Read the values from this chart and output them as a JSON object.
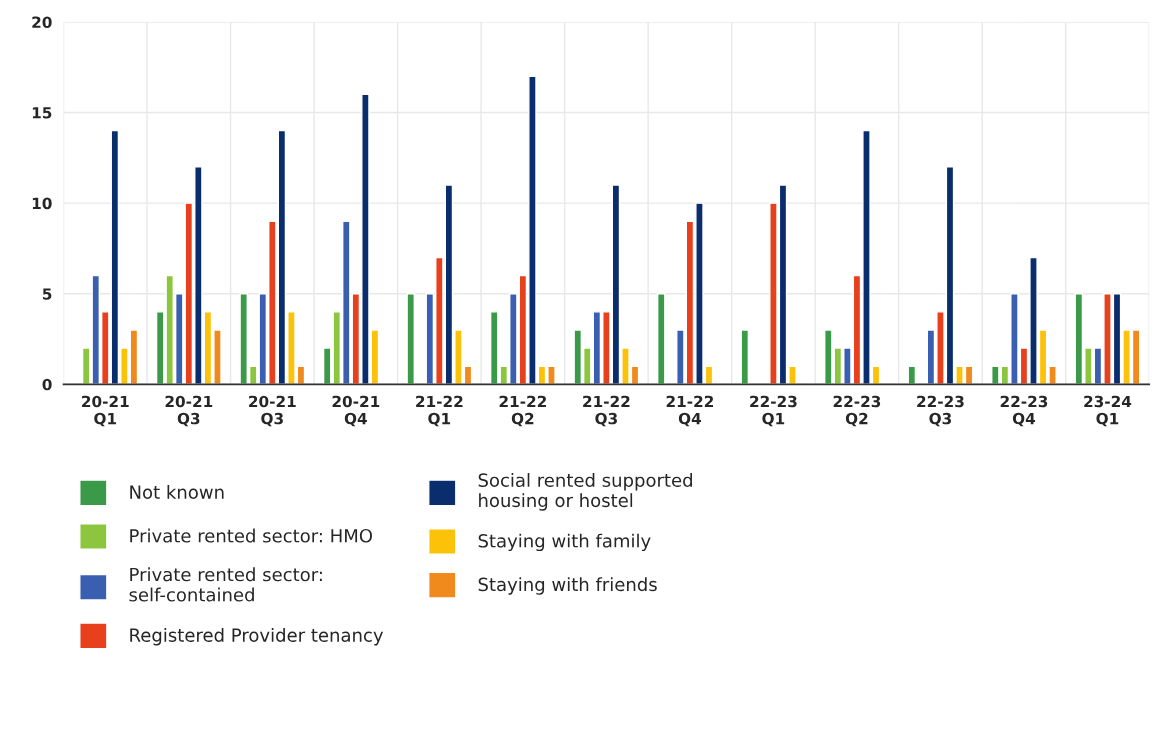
{
  "chart_data": {
    "type": "bar",
    "categories": [
      "20-21\nQ1",
      "20-21\nQ3",
      "20-21\nQ3",
      "20-21\nQ4",
      "21-22\nQ1",
      "21-22\nQ2",
      "21-22\nQ3",
      "21-22\nQ4",
      "22-23\nQ1",
      "22-23\nQ2",
      "22-23\nQ3",
      "22-23\nQ4",
      "23-24\nQ1"
    ],
    "series": [
      {
        "name": "Not known",
        "color": "#3a9a48",
        "values": [
          null,
          4,
          5,
          2,
          5,
          4,
          3,
          5,
          3,
          3,
          1,
          1,
          5
        ]
      },
      {
        "name": "Private rented sector: HMO",
        "color": "#8cc63f",
        "values": [
          2,
          6,
          1,
          4,
          null,
          1,
          2,
          null,
          null,
          2,
          null,
          1,
          2
        ]
      },
      {
        "name": "Private rented sector:\nself-contained",
        "color": "#3a5fb0",
        "values": [
          6,
          5,
          5,
          9,
          5,
          5,
          4,
          3,
          null,
          2,
          3,
          5,
          2
        ]
      },
      {
        "name": "Registered Provider tenancy",
        "color": "#e8401c",
        "values": [
          4,
          10,
          9,
          5,
          7,
          6,
          4,
          9,
          10,
          6,
          4,
          2,
          5
        ]
      },
      {
        "name": "Social rented supported\nhousing or hostel",
        "color": "#0a2d6e",
        "values": [
          14,
          12,
          14,
          16,
          11,
          17,
          11,
          10,
          11,
          14,
          12,
          7,
          5
        ]
      },
      {
        "name": "Staying with family",
        "color": "#fcc20a",
        "values": [
          2,
          4,
          4,
          3,
          3,
          1,
          2,
          1,
          1,
          1,
          1,
          3,
          3
        ]
      },
      {
        "name": "Staying with friends",
        "color": "#f08a1c",
        "values": [
          3,
          3,
          1,
          null,
          1,
          1,
          1,
          null,
          null,
          null,
          1,
          1,
          3
        ]
      }
    ],
    "ylim": [
      0,
      20
    ],
    "yticks": [
      0,
      5,
      10,
      15,
      20
    ],
    "grid": true,
    "legend": "bottom"
  }
}
